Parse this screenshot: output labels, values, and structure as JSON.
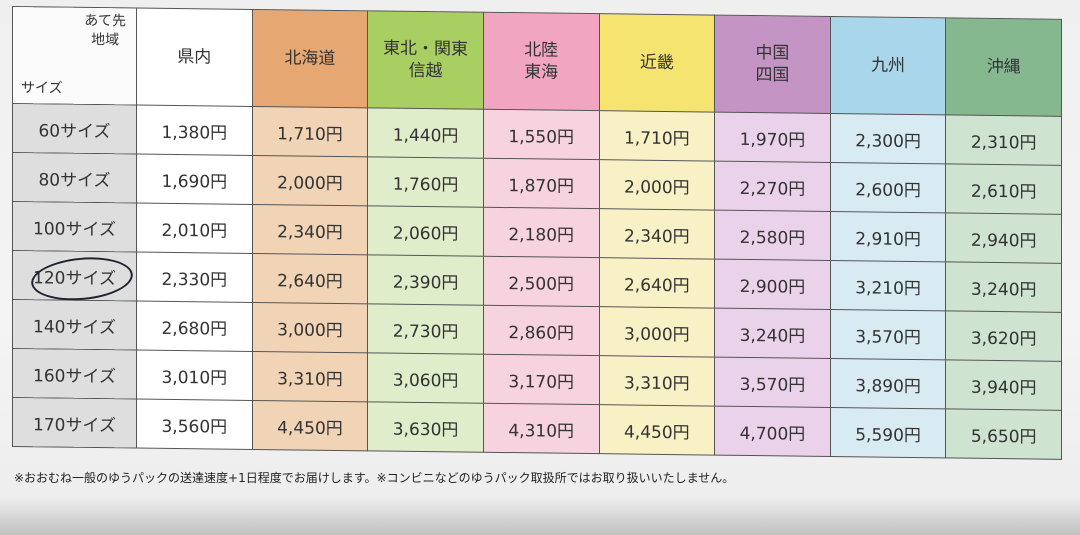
{
  "header": {
    "corner_destination": "あて先",
    "corner_region": "地域",
    "corner_size": "サイズ",
    "regions": [
      {
        "line1": "県内",
        "line2": "",
        "bg": "#ffffff",
        "cell": "#ffffff"
      },
      {
        "line1": "北海道",
        "line2": "",
        "bg": "#e6a773",
        "cell": "#f1d3b6"
      },
      {
        "line1": "東北・関東",
        "line2": "信越",
        "bg": "#a9cf63",
        "cell": "#dfedcb"
      },
      {
        "line1": "北陸",
        "line2": "東海",
        "bg": "#f1a5c1",
        "cell": "#f6d3df"
      },
      {
        "line1": "近畿",
        "line2": "",
        "bg": "#f5e570",
        "cell": "#f8f1c6"
      },
      {
        "line1": "中国",
        "line2": "四国",
        "bg": "#c494c4",
        "cell": "#ead2ea"
      },
      {
        "line1": "九州",
        "line2": "",
        "bg": "#a9d6ea",
        "cell": "#d8ebf3"
      },
      {
        "line1": "沖縄",
        "line2": "",
        "bg": "#86b890",
        "cell": "#cfe3d1"
      }
    ]
  },
  "rows": [
    {
      "size": "60サイズ",
      "prices": [
        "1,380円",
        "1,710円",
        "1,440円",
        "1,550円",
        "1,710円",
        "1,970円",
        "2,300円",
        "2,310円"
      ]
    },
    {
      "size": "80サイズ",
      "prices": [
        "1,690円",
        "2,000円",
        "1,760円",
        "1,870円",
        "2,000円",
        "2,270円",
        "2,600円",
        "2,610円"
      ]
    },
    {
      "size": "100サイズ",
      "prices": [
        "2,010円",
        "2,340円",
        "2,060円",
        "2,180円",
        "2,340円",
        "2,580円",
        "2,910円",
        "2,940円"
      ]
    },
    {
      "size": "120サイズ",
      "prices": [
        "2,330円",
        "2,640円",
        "2,390円",
        "2,500円",
        "2,640円",
        "2,900円",
        "3,210円",
        "3,240円"
      ],
      "circled": true
    },
    {
      "size": "140サイズ",
      "prices": [
        "2,680円",
        "3,000円",
        "2,730円",
        "2,860円",
        "3,000円",
        "3,240円",
        "3,570円",
        "3,620円"
      ]
    },
    {
      "size": "160サイズ",
      "prices": [
        "3,010円",
        "3,310円",
        "3,060円",
        "3,170円",
        "3,310円",
        "3,570円",
        "3,890円",
        "3,940円"
      ]
    },
    {
      "size": "170サイズ",
      "prices": [
        "3,560円",
        "4,450円",
        "3,630円",
        "4,310円",
        "4,450円",
        "4,700円",
        "5,590円",
        "5,650円"
      ]
    }
  ],
  "footnote": "※おおむね一般のゆうパックの送達速度+1日程度でお届けします。※コンビニなどのゆうパック取扱所ではお取り扱いいたしません。"
}
